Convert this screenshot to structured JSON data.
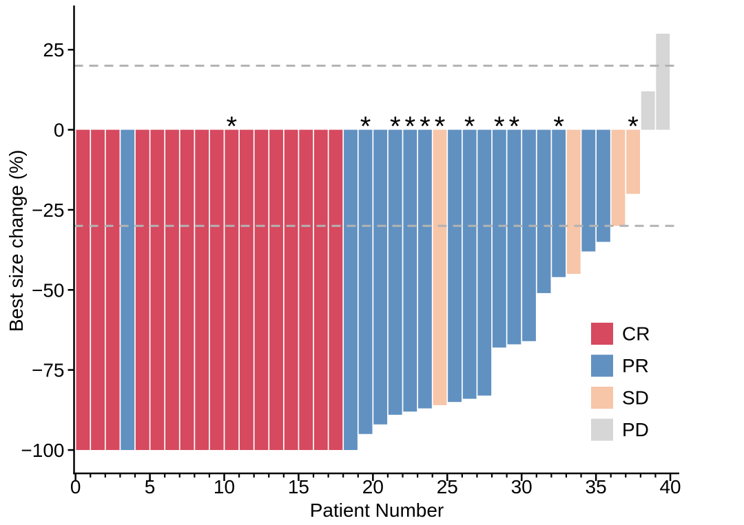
{
  "chart_data": {
    "type": "bar",
    "subtype": "waterfall",
    "title": "",
    "xlabel": "Patient Number",
    "ylabel": "Best size change (%)",
    "xlim": [
      -0.1,
      40.6
    ],
    "ylim": [
      -107.3,
      38.8
    ],
    "grid": false,
    "annotation_symbol": "*",
    "x_axis": {
      "range": [
        0,
        40
      ],
      "minor_tick_every": 1,
      "major_ticks": [
        {
          "value": 0,
          "label": "0"
        },
        {
          "value": 5,
          "label": "5"
        },
        {
          "value": 10,
          "label": "10"
        },
        {
          "value": 15,
          "label": "15"
        },
        {
          "value": 20,
          "label": "20"
        },
        {
          "value": 25,
          "label": "25"
        },
        {
          "value": 30,
          "label": "30"
        },
        {
          "value": 35,
          "label": "35"
        },
        {
          "value": 40,
          "label": "40"
        }
      ]
    },
    "y_axis": {
      "ticks": [
        {
          "value": 25,
          "label": "25"
        },
        {
          "value": 0,
          "label": "0"
        },
        {
          "value": -25,
          "label": "−25"
        },
        {
          "value": -50,
          "label": "−50"
        },
        {
          "value": -75,
          "label": "−75"
        },
        {
          "value": -100,
          "label": "−100"
        }
      ]
    },
    "thresholds": [
      {
        "value": 20
      },
      {
        "value": -30
      }
    ],
    "legend": {
      "position": "lower-right",
      "entries": [
        {
          "code": "CR",
          "label": "CR"
        },
        {
          "code": "PR",
          "label": "PR"
        },
        {
          "code": "SD",
          "label": "SD"
        },
        {
          "code": "PD",
          "label": "PD"
        }
      ]
    },
    "patients": [
      {
        "patient": 1,
        "value": -100,
        "response": "CR",
        "asterisk": false
      },
      {
        "patient": 2,
        "value": -100,
        "response": "CR",
        "asterisk": false
      },
      {
        "patient": 3,
        "value": -100,
        "response": "CR",
        "asterisk": false
      },
      {
        "patient": 4,
        "value": -100,
        "response": "PR",
        "asterisk": false
      },
      {
        "patient": 5,
        "value": -100,
        "response": "CR",
        "asterisk": false
      },
      {
        "patient": 6,
        "value": -100,
        "response": "CR",
        "asterisk": false
      },
      {
        "patient": 7,
        "value": -100,
        "response": "CR",
        "asterisk": false
      },
      {
        "patient": 8,
        "value": -100,
        "response": "CR",
        "asterisk": false
      },
      {
        "patient": 9,
        "value": -100,
        "response": "CR",
        "asterisk": false
      },
      {
        "patient": 10,
        "value": -100,
        "response": "CR",
        "asterisk": false
      },
      {
        "patient": 11,
        "value": -100,
        "response": "CR",
        "asterisk": true
      },
      {
        "patient": 12,
        "value": -100,
        "response": "CR",
        "asterisk": false
      },
      {
        "patient": 13,
        "value": -100,
        "response": "CR",
        "asterisk": false
      },
      {
        "patient": 14,
        "value": -100,
        "response": "CR",
        "asterisk": false
      },
      {
        "patient": 15,
        "value": -100,
        "response": "CR",
        "asterisk": false
      },
      {
        "patient": 16,
        "value": -100,
        "response": "CR",
        "asterisk": false
      },
      {
        "patient": 17,
        "value": -100,
        "response": "CR",
        "asterisk": false
      },
      {
        "patient": 18,
        "value": -100,
        "response": "CR",
        "asterisk": false
      },
      {
        "patient": 19,
        "value": -100,
        "response": "PR",
        "asterisk": false
      },
      {
        "patient": 20,
        "value": -95,
        "response": "PR",
        "asterisk": true
      },
      {
        "patient": 21,
        "value": -92,
        "response": "PR",
        "asterisk": false
      },
      {
        "patient": 22,
        "value": -89,
        "response": "PR",
        "asterisk": true
      },
      {
        "patient": 23,
        "value": -88,
        "response": "PR",
        "asterisk": true
      },
      {
        "patient": 24,
        "value": -87,
        "response": "PR",
        "asterisk": true
      },
      {
        "patient": 25,
        "value": -86,
        "response": "SD",
        "asterisk": true
      },
      {
        "patient": 26,
        "value": -85,
        "response": "PR",
        "asterisk": false
      },
      {
        "patient": 27,
        "value": -84,
        "response": "PR",
        "asterisk": true
      },
      {
        "patient": 28,
        "value": -83,
        "response": "PR",
        "asterisk": false
      },
      {
        "patient": 29,
        "value": -68,
        "response": "PR",
        "asterisk": true
      },
      {
        "patient": 30,
        "value": -67,
        "response": "PR",
        "asterisk": true
      },
      {
        "patient": 31,
        "value": -66,
        "response": "PR",
        "asterisk": false
      },
      {
        "patient": 32,
        "value": -51,
        "response": "PR",
        "asterisk": false
      },
      {
        "patient": 33,
        "value": -46,
        "response": "PR",
        "asterisk": true
      },
      {
        "patient": 34,
        "value": -45,
        "response": "SD",
        "asterisk": false
      },
      {
        "patient": 35,
        "value": -38,
        "response": "PR",
        "asterisk": false
      },
      {
        "patient": 36,
        "value": -35,
        "response": "PR",
        "asterisk": false
      },
      {
        "patient": 37,
        "value": -30,
        "response": "SD",
        "asterisk": false
      },
      {
        "patient": 38,
        "value": -20,
        "response": "SD",
        "asterisk": true
      },
      {
        "patient": 39,
        "value": 12,
        "response": "PD",
        "asterisk": false
      },
      {
        "patient": 40,
        "value": 30,
        "response": "PD",
        "asterisk": false
      }
    ]
  },
  "colors": {
    "CR": "#d6495f",
    "PR": "#6191c1",
    "SD": "#f7c5a8",
    "PD": "#d6d6d6",
    "threshold_line": "#b3b3b3",
    "axis": "#000000",
    "background": "#ffffff"
  }
}
